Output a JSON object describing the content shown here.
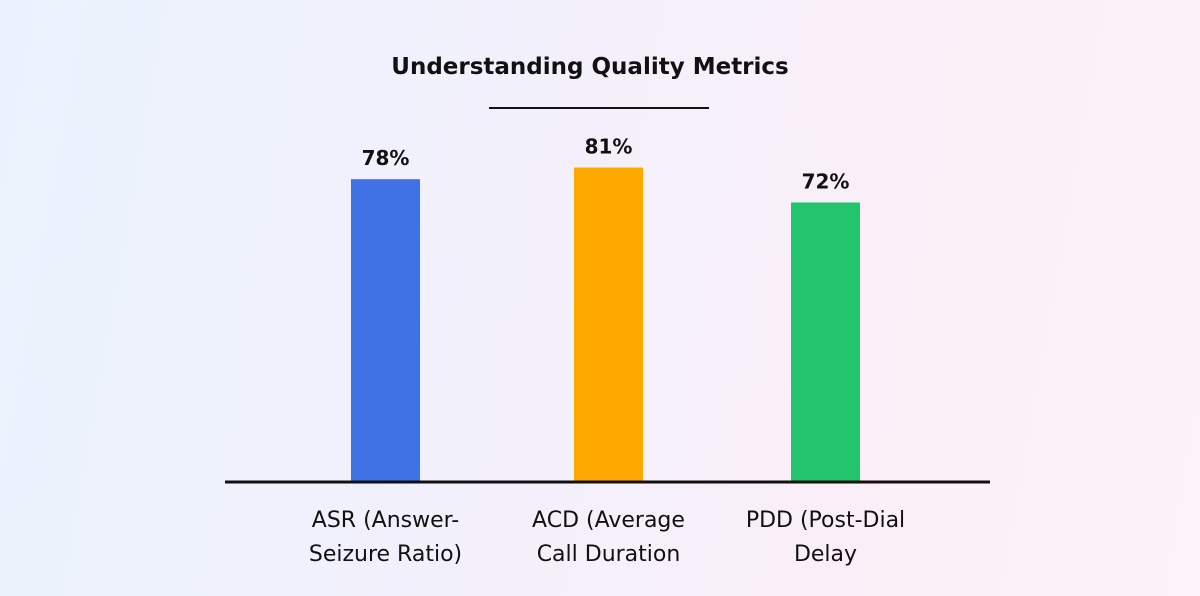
{
  "chart_data": {
    "type": "bar",
    "title": "Understanding Quality Metrics",
    "categories": [
      [
        "ASR (Answer-",
        "Seizure Ratio)"
      ],
      [
        "ACD (Average",
        "Call Duration"
      ],
      [
        "PDD (Post-Dial",
        "Delay"
      ]
    ],
    "values": [
      78,
      81,
      72
    ],
    "data_labels": [
      "78%",
      "81%",
      "72%"
    ],
    "colors": [
      "#3f72e4",
      "#ffa800",
      "#22c46e"
    ],
    "ylim": [
      0,
      85
    ],
    "grid": false,
    "xlabel": "",
    "ylabel": ""
  }
}
